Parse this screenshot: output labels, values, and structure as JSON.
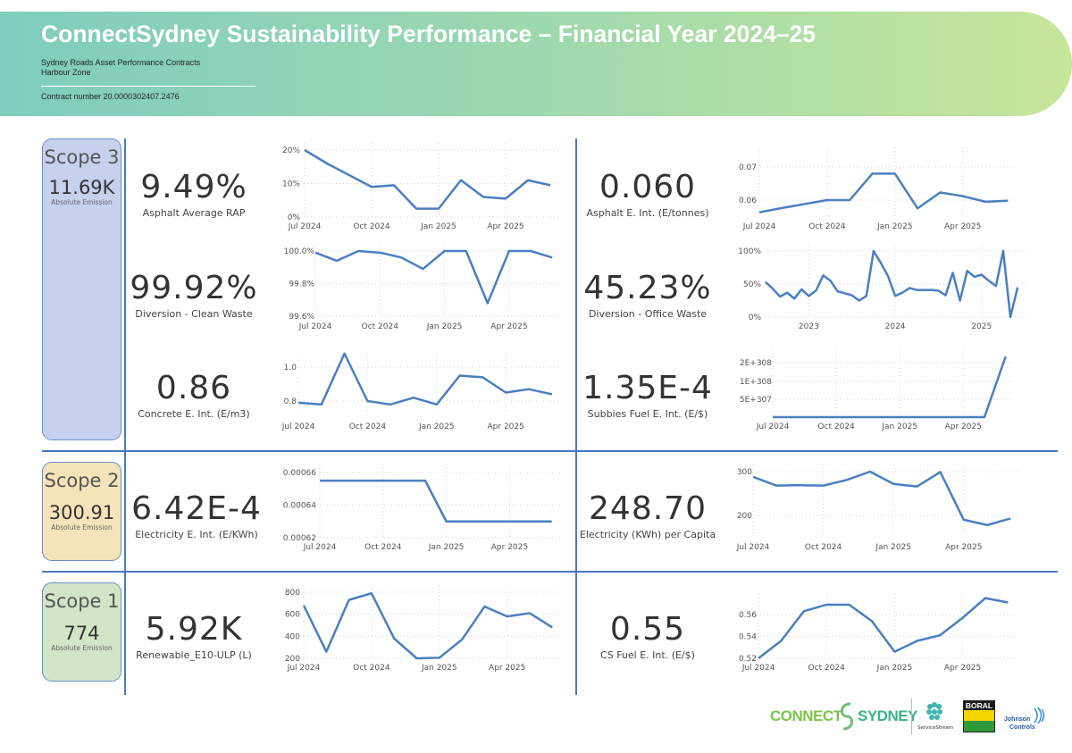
{
  "header": {
    "title": "ConnectSydney Sustainability Performance – Financial Year 2024–25",
    "line1": "Sydney Roads Asset Performance Contracts",
    "line2": "Harbour Zone",
    "contract": "Contract number 20.0000302407.2476"
  },
  "colors": {
    "line": "#4a7fc1",
    "divider": "#4a78c0",
    "scope3": "#c6d1ee",
    "scope2": "#f5e3b9",
    "scope1": "#d0e6c6"
  },
  "scopes": [
    {
      "label": "Scope 3",
      "value": "11.69K",
      "caption": "Absolute Emission"
    },
    {
      "label": "Scope 2",
      "value": "300.91",
      "caption": "Absolute Emission"
    },
    {
      "label": "Scope 1",
      "value": "774",
      "caption": "Absolute Emission"
    }
  ],
  "kpis": [
    {
      "value": "9.49%",
      "label": "Asphalt Average RAP"
    },
    {
      "value": "0.060",
      "label": "Asphalt E. Int. (E/tonnes)"
    },
    {
      "value": "99.92%",
      "label": "Diversion - Clean Waste"
    },
    {
      "value": "45.23%",
      "label": "Diversion - Office Waste"
    },
    {
      "value": "0.86",
      "label": "Concrete E. Int. (E/m3)"
    },
    {
      "value": "1.35E-4",
      "label": "Subbies Fuel E. Int. (E/$)"
    },
    {
      "value": "6.42E-4",
      "label": "Electricity E. Int. (E/KWh)"
    },
    {
      "value": "248.70",
      "label": "Electricity (KWh) per Capita"
    },
    {
      "value": "5.92K",
      "label": "Renewable_E10-ULP (L)"
    },
    {
      "value": "0.55",
      "label": "CS Fuel E. Int. (E/$)"
    }
  ],
  "chart_data": [
    {
      "id": "asphalt-rap",
      "type": "line",
      "x": [
        "Jul 2024",
        "Aug 2024",
        "Sep 2024",
        "Oct 2024",
        "Nov 2024",
        "Dec 2024",
        "Jan 2025",
        "Feb 2025",
        "Mar 2025",
        "Apr 2025",
        "May 2025",
        "Jun 2025"
      ],
      "values": [
        20,
        16,
        12.5,
        9,
        9.5,
        2.5,
        2.5,
        11,
        6,
        5.5,
        11,
        9.5
      ],
      "yticks": [
        0,
        10,
        20
      ],
      "ytick_labels": [
        "0%",
        "10%",
        "20%"
      ],
      "xticks": [
        "Jul 2024",
        "Oct 2024",
        "Jan 2025",
        "Apr 2025"
      ],
      "grid": true
    },
    {
      "id": "asphalt-eint",
      "type": "line",
      "x": [
        "Jul 2024",
        "Aug 2024",
        "Sep 2024",
        "Oct 2024",
        "Nov 2024",
        "Dec 2024",
        "Jan 2025",
        "Feb 2025",
        "Mar 2025",
        "Apr 2025",
        "May 2025",
        "Jun 2025"
      ],
      "values": [
        0.0563,
        0.0576,
        0.0588,
        0.06,
        0.06,
        0.068,
        0.068,
        0.0575,
        0.0623,
        0.0612,
        0.0595,
        0.0598
      ],
      "yticks": [
        0.06,
        0.07
      ],
      "ytick_labels": [
        "0.06",
        "0.07"
      ],
      "xticks": [
        "Jul 2024",
        "Oct 2024",
        "Jan 2025",
        "Apr 2025"
      ],
      "grid": true
    },
    {
      "id": "clean-waste",
      "type": "line",
      "x": [
        "Jul 2024",
        "Aug 2024",
        "Sep 2024",
        "Oct 2024",
        "Nov 2024",
        "Dec 2024",
        "Jan 2025",
        "Feb 2025",
        "Mar 2025",
        "Apr 2025",
        "May 2025",
        "Jun 2025"
      ],
      "values": [
        99.99,
        99.94,
        100,
        99.99,
        99.96,
        99.89,
        100,
        100,
        99.68,
        100,
        100,
        99.96
      ],
      "yticks": [
        99.6,
        99.8,
        100
      ],
      "ytick_labels": [
        "99.6%",
        "99.8%",
        "100.0%"
      ],
      "xticks": [
        "Jul 2024",
        "Oct 2024",
        "Jan 2025",
        "Apr 2025"
      ],
      "grid": true
    },
    {
      "id": "office-waste",
      "type": "line",
      "x_range": [
        "Jul 2022",
        "Jun 2025"
      ],
      "values": [
        53,
        43,
        31,
        37,
        28,
        42,
        32,
        40,
        63,
        55,
        39,
        36,
        33,
        25,
        32,
        100,
        82,
        62,
        32,
        37,
        44,
        41,
        41,
        41,
        40,
        33,
        67,
        25,
        70,
        61,
        64,
        55,
        47,
        100,
        0,
        45
      ],
      "yticks": [
        0,
        50,
        100
      ],
      "ytick_labels": [
        "0%",
        "50%",
        "100%"
      ],
      "xticks": [
        "2023",
        "2024",
        "2025"
      ],
      "grid": true
    },
    {
      "id": "concrete-eint",
      "type": "line",
      "x": [
        "Jul 2024",
        "Aug 2024",
        "Sep 2024",
        "Oct 2024",
        "Nov 2024",
        "Dec 2024",
        "Jan 2025",
        "Feb 2025",
        "Mar 2025",
        "Apr 2025",
        "May 2025",
        "Jun 2025"
      ],
      "values": [
        0.79,
        0.78,
        1.08,
        0.8,
        0.78,
        0.82,
        0.78,
        0.95,
        0.94,
        0.85,
        0.87,
        0.84
      ],
      "yticks": [
        0.8,
        1.0
      ],
      "ytick_labels": [
        "0.8",
        "1.0"
      ],
      "xticks": [
        "Jul 2024",
        "Oct 2024",
        "Jan 2025",
        "Apr 2025"
      ],
      "grid": true
    },
    {
      "id": "subbies-fuel",
      "type": "line",
      "x": [
        "Jul 2024",
        "Aug 2024",
        "Sep 2024",
        "Oct 2024",
        "Nov 2024",
        "Dec 2024",
        "Jan 2025",
        "Feb 2025",
        "Mar 2025",
        "Apr 2025",
        "May 2025",
        "Jun 2025"
      ],
      "values": [
        "0",
        "0",
        "0",
        "0",
        "0",
        "0",
        "0",
        "0",
        "0",
        "0",
        "0",
        "2.5E+308"
      ],
      "yticks": [
        "5E+307",
        "1E+308",
        "2E+308"
      ],
      "ytick_labels": [
        "5E+307",
        "1E+308",
        "2E+308"
      ],
      "xticks": [
        "Jul 2024",
        "Oct 2024",
        "Jan 2025",
        "Apr 2025"
      ],
      "grid": true
    },
    {
      "id": "electricity-eint",
      "type": "line",
      "x": [
        "Jul 2024",
        "Aug 2024",
        "Sep 2024",
        "Oct 2024",
        "Nov 2024",
        "Dec 2024",
        "Jan 2025",
        "Feb 2025",
        "Mar 2025",
        "Apr 2025",
        "May 2025",
        "Jun 2025"
      ],
      "values": [
        0.000655,
        0.000655,
        0.000655,
        0.000655,
        0.000655,
        0.000655,
        0.00063,
        0.00063,
        0.00063,
        0.00063,
        0.00063,
        0.00063
      ],
      "yticks": [
        0.00062,
        0.00064,
        0.00066
      ],
      "ytick_labels": [
        "0.00062",
        "0.00064",
        "0.00066"
      ],
      "xticks": [
        "Jul 2024",
        "Oct 2024",
        "Jan 2025",
        "Apr 2025"
      ],
      "grid": true
    },
    {
      "id": "electricity-per-capita",
      "type": "line",
      "x": [
        "Jul 2024",
        "Aug 2024",
        "Sep 2024",
        "Oct 2024",
        "Nov 2024",
        "Dec 2024",
        "Jan 2025",
        "Feb 2025",
        "Mar 2025",
        "Apr 2025",
        "May 2025",
        "Jun 2025"
      ],
      "values": [
        288,
        268,
        269,
        268,
        281,
        300,
        272,
        266,
        299,
        190,
        178,
        193
      ],
      "yticks": [
        200,
        300
      ],
      "ytick_labels": [
        "200",
        "300"
      ],
      "xticks": [
        "Jul 2024",
        "Oct 2024",
        "Jan 2025",
        "Apr 2025"
      ],
      "grid": true
    },
    {
      "id": "renewable-e10",
      "type": "line",
      "x": [
        "Jul 2024",
        "Aug 2024",
        "Sep 2024",
        "Oct 2024",
        "Nov 2024",
        "Dec 2024",
        "Jan 2025",
        "Feb 2025",
        "Mar 2025",
        "Apr 2025",
        "May 2025",
        "Jun 2025"
      ],
      "values": [
        680,
        260,
        730,
        790,
        380,
        200,
        205,
        370,
        670,
        580,
        610,
        480
      ],
      "yticks": [
        200,
        400,
        600,
        800
      ],
      "ytick_labels": [
        "200",
        "400",
        "600",
        "800"
      ],
      "xticks": [
        "Jul 2024",
        "Oct 2024",
        "Jan 2025",
        "Apr 2025"
      ],
      "grid": true
    },
    {
      "id": "cs-fuel-eint",
      "type": "line",
      "x": [
        "Jul 2024",
        "Aug 2024",
        "Sep 2024",
        "Oct 2024",
        "Nov 2024",
        "Dec 2024",
        "Jan 2025",
        "Feb 2025",
        "Mar 2025",
        "Apr 2025",
        "May 2025",
        "Jun 2025"
      ],
      "values": [
        0.52,
        0.536,
        0.563,
        0.569,
        0.569,
        0.554,
        0.526,
        0.536,
        0.541,
        0.557,
        0.575,
        0.571
      ],
      "yticks": [
        0.52,
        0.54,
        0.56
      ],
      "ytick_labels": [
        "0.52",
        "0.54",
        "0.56"
      ],
      "xticks": [
        "Jul 2024",
        "Oct 2024",
        "Jan 2025",
        "Apr 2025"
      ],
      "grid": true
    }
  ],
  "footer": {
    "logos": [
      "CONNECT SYDNEY",
      "ServiceStream",
      "BORAL",
      "Johnson Controls"
    ],
    "connect_left": "CONNECT",
    "connect_right": "SYDNEY",
    "servicestream": "ServiceStream",
    "boral": "BORAL",
    "jc1": "Johnson",
    "jc2": "Controls"
  }
}
